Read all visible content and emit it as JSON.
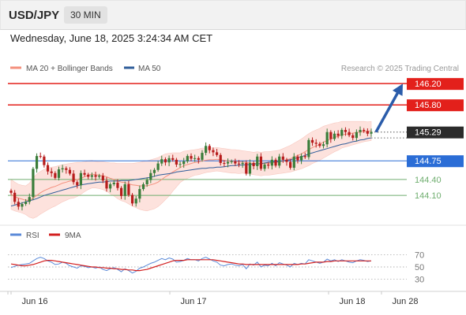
{
  "header": {
    "pair": "USD/JPY",
    "timeframe": "30 MIN"
  },
  "datetime": "Wednesday, June 18, 2025 3:24:34 AM CET",
  "credit": "Research © 2025 Trading Central",
  "colors": {
    "resistance": "#e3201b",
    "support": "#2b6dd6",
    "target_green": "#6fae6f",
    "ma20": "#f4907d",
    "ma50": "#2f5d9a",
    "band_fill": "#fde2dd",
    "candle_up": "#3a7d3a",
    "candle_down": "#b71c1c",
    "price_box": "#2b2b2b",
    "rsi": "#5b8ad8",
    "rsi_ma": "#d32020",
    "arrow": "#2a5caa"
  },
  "chart_data": [
    {
      "type": "candlestick",
      "pair": "USD/JPY",
      "timeframe": "30 MIN",
      "legend": [
        "MA 20 + Bollinger Bands",
        "MA 50"
      ],
      "legend_position": "top-left",
      "x_ticks": [
        "Jun 16",
        "Jun 17",
        "Jun 18",
        "Jun 28"
      ],
      "ylim": [
        143.6,
        146.35
      ],
      "levels": [
        {
          "value": 146.2,
          "label": "146.20",
          "kind": "resistance"
        },
        {
          "value": 145.8,
          "label": "145.80",
          "kind": "resistance"
        },
        {
          "value": 145.29,
          "label": "145.29",
          "kind": "last_price"
        },
        {
          "value": 144.75,
          "label": "144.75",
          "kind": "pivot"
        },
        {
          "value": 144.4,
          "label": "144.40",
          "kind": "support"
        },
        {
          "value": 144.1,
          "label": "144.10",
          "kind": "support"
        }
      ],
      "projection": {
        "from": 145.29,
        "to": 146.2,
        "direction": "up"
      },
      "close": [
        144.15,
        143.98,
        143.89,
        143.94,
        143.98,
        144.07,
        144.6,
        144.84,
        144.83,
        144.67,
        144.55,
        144.52,
        144.43,
        144.59,
        144.61,
        144.58,
        144.51,
        144.35,
        144.29,
        144.52,
        144.49,
        144.45,
        144.48,
        144.45,
        144.47,
        144.38,
        144.23,
        144.31,
        144.34,
        144.24,
        144.09,
        144.31,
        144.11,
        143.95,
        144.04,
        144.22,
        144.31,
        144.39,
        144.52,
        144.58,
        144.7,
        144.78,
        144.72,
        144.8,
        144.77,
        144.68,
        144.69,
        144.74,
        144.84,
        144.79,
        144.8,
        144.77,
        144.9,
        145.03,
        144.95,
        144.91,
        144.86,
        144.71,
        144.7,
        144.73,
        144.74,
        144.7,
        144.69,
        144.71,
        144.51,
        144.71,
        144.65,
        144.83,
        144.6,
        144.68,
        144.66,
        144.77,
        144.66,
        144.83,
        144.77,
        144.73,
        144.62,
        144.83,
        144.76,
        144.84,
        144.82,
        145.14,
        145.09,
        145.07,
        145.03,
        145.06,
        145.29,
        145.16,
        145.26,
        145.22,
        145.33,
        145.29,
        145.23,
        145.18,
        145.29,
        145.33,
        145.31,
        145.26,
        145.29
      ],
      "sma20": [
        144.12,
        144.08,
        144.05,
        144.03,
        144.01,
        144.01,
        144.05,
        144.1,
        144.15,
        144.19,
        144.22,
        144.25,
        144.27,
        144.3,
        144.33,
        144.35,
        144.37,
        144.38,
        144.4,
        144.42,
        144.45,
        144.48,
        144.5,
        144.49,
        144.48,
        144.47,
        144.45,
        144.42,
        144.4,
        144.37,
        144.35,
        144.34,
        144.32,
        144.3,
        144.29,
        144.28,
        144.28,
        144.28,
        144.3,
        144.32,
        144.35,
        144.4,
        144.45,
        144.49,
        144.54,
        144.58,
        144.62,
        144.66,
        144.68,
        144.7,
        144.72,
        144.73,
        144.75,
        144.76,
        144.77,
        144.77,
        144.78,
        144.77,
        144.76,
        144.75,
        144.74,
        144.74,
        144.73,
        144.73,
        144.72,
        144.71,
        144.7,
        144.7,
        144.69,
        144.7,
        144.7,
        144.71,
        144.72,
        144.73,
        144.75,
        144.77,
        144.79,
        144.82,
        144.85,
        144.88,
        144.92,
        144.96,
        145.0,
        145.03,
        145.06,
        145.1,
        145.13,
        145.16,
        145.19,
        145.21,
        145.24,
        145.25,
        145.26,
        145.27,
        145.28,
        145.29,
        145.3,
        145.3,
        145.31
      ],
      "sma50": [
        143.9,
        143.92,
        143.94,
        143.96,
        143.98,
        144.0,
        144.02,
        144.04,
        144.07,
        144.1,
        144.12,
        144.14,
        144.16,
        144.18,
        144.2,
        144.22,
        144.24,
        144.26,
        144.28,
        144.3,
        144.31,
        144.32,
        144.33,
        144.34,
        144.35,
        144.35,
        144.36,
        144.37,
        144.37,
        144.37,
        144.38,
        144.38,
        144.38,
        144.39,
        144.4,
        144.41,
        144.42,
        144.43,
        144.44,
        144.46,
        144.48,
        144.49,
        144.5,
        144.51,
        144.52,
        144.54,
        144.55,
        144.56,
        144.57,
        144.58,
        144.59,
        144.6,
        144.61,
        144.61,
        144.62,
        144.62,
        144.63,
        144.63,
        144.64,
        144.65,
        144.66,
        144.66,
        144.67,
        144.67,
        144.68,
        144.68,
        144.69,
        144.69,
        144.7,
        144.71,
        144.72,
        144.73,
        144.73,
        144.74,
        144.75,
        144.76,
        144.77,
        144.79,
        144.81,
        144.83,
        144.85,
        144.88,
        144.9,
        144.92,
        144.94,
        144.96,
        144.98,
        145.0,
        145.02,
        145.04,
        145.06,
        145.07,
        145.09,
        145.11,
        145.12,
        145.14,
        145.15,
        145.17,
        145.18
      ],
      "bollinger_halfwidth": [
        0.28,
        0.27,
        0.26,
        0.26,
        0.27,
        0.32,
        0.38,
        0.4,
        0.4,
        0.4,
        0.39,
        0.38,
        0.37,
        0.36,
        0.35,
        0.34,
        0.33,
        0.33,
        0.32,
        0.3,
        0.28,
        0.27,
        0.26,
        0.25,
        0.25,
        0.26,
        0.27,
        0.29,
        0.31,
        0.33,
        0.35,
        0.36,
        0.38,
        0.4,
        0.42,
        0.44,
        0.46,
        0.47,
        0.47,
        0.47,
        0.46,
        0.45,
        0.43,
        0.4,
        0.36,
        0.32,
        0.28,
        0.27,
        0.26,
        0.25,
        0.24,
        0.24,
        0.24,
        0.23,
        0.23,
        0.22,
        0.22,
        0.22,
        0.22,
        0.22,
        0.22,
        0.22,
        0.22,
        0.21,
        0.21,
        0.21,
        0.21,
        0.22,
        0.22,
        0.22,
        0.22,
        0.22,
        0.22,
        0.22,
        0.23,
        0.24,
        0.25,
        0.26,
        0.27,
        0.28,
        0.29,
        0.3,
        0.3,
        0.3,
        0.3,
        0.3,
        0.29,
        0.28,
        0.27,
        0.26,
        0.25,
        0.24,
        0.23,
        0.22,
        0.21,
        0.2,
        0.19,
        0.18,
        0.18
      ],
      "rsi_indicator": {
        "legend": [
          "RSI",
          "9MA"
        ],
        "y_ticks": [
          70,
          50,
          30
        ],
        "ylim": [
          20,
          80
        ],
        "rsi": [
          49,
          51,
          53,
          54,
          55,
          56,
          60,
          64,
          66,
          64,
          60,
          58,
          54,
          55,
          58,
          56,
          52,
          50,
          48,
          52,
          51,
          49,
          50,
          48,
          50,
          46,
          44,
          47,
          49,
          46,
          42,
          47,
          44,
          40,
          43,
          48,
          50,
          53,
          56,
          58,
          61,
          64,
          62,
          65,
          63,
          58,
          59,
          61,
          64,
          62,
          62,
          60,
          64,
          66,
          63,
          60,
          58,
          53,
          52,
          54,
          55,
          53,
          52,
          54,
          47,
          55,
          53,
          58,
          50,
          53,
          52,
          56,
          52,
          57,
          55,
          53,
          50,
          56,
          54,
          56,
          55,
          62,
          60,
          58,
          56,
          58,
          63,
          60,
          62,
          59,
          62,
          60,
          58,
          57,
          60,
          62,
          61,
          59,
          60
        ],
        "rsi_ma": [
          55,
          54,
          53,
          52,
          52,
          53,
          54,
          56,
          58,
          60,
          61,
          61,
          60,
          59,
          58,
          57,
          56,
          55,
          54,
          53,
          52,
          51,
          50,
          50,
          49,
          49,
          48,
          48,
          47,
          47,
          46,
          46,
          45,
          45,
          44,
          44,
          45,
          46,
          48,
          50,
          52,
          54,
          56,
          58,
          60,
          61,
          61,
          61,
          62,
          62,
          62,
          62,
          62,
          62,
          62,
          62,
          61,
          60,
          59,
          58,
          57,
          56,
          55,
          55,
          54,
          54,
          54,
          54,
          54,
          54,
          54,
          54,
          54,
          54,
          54,
          54,
          54,
          54,
          54,
          55,
          55,
          56,
          57,
          58,
          58,
          58,
          59,
          59,
          60,
          60,
          60,
          60,
          60,
          60,
          60,
          60,
          60,
          60,
          60
        ]
      }
    }
  ]
}
